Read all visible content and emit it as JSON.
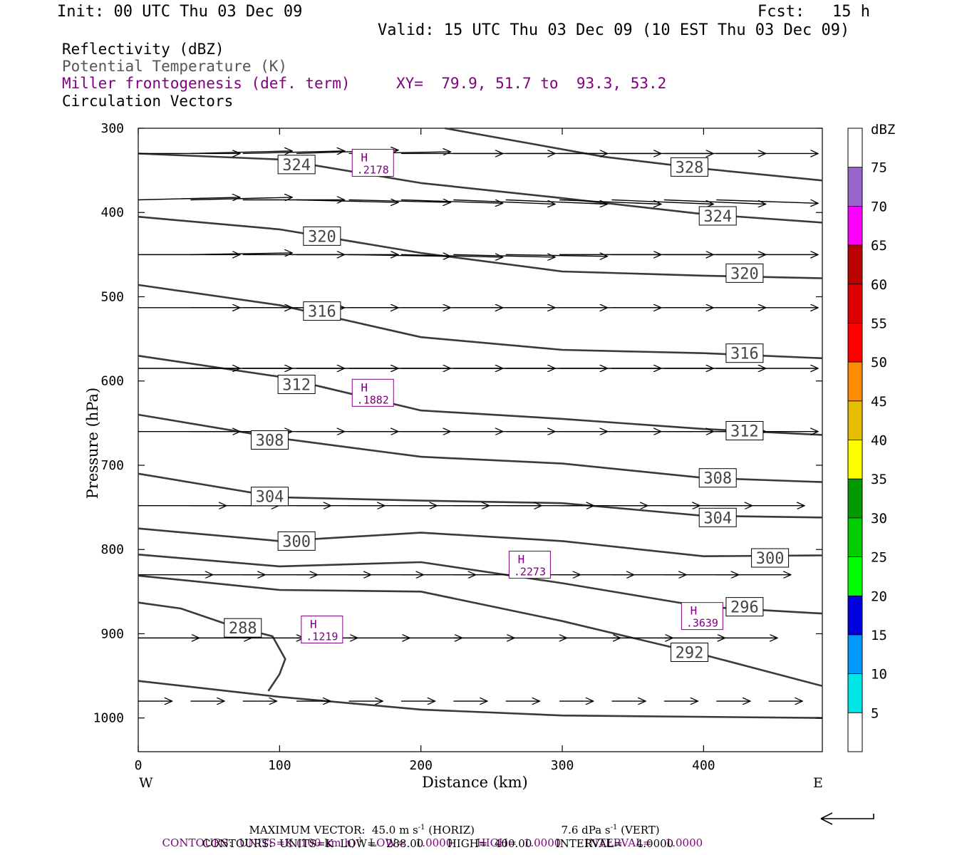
{
  "header": {
    "init": "Init: 00 UTC Thu 03 Dec 09",
    "fcst_label": "Fcst:",
    "fcst_value": "15 h",
    "valid": "Valid: 15 UTC Thu 03 Dec 09 (10 EST Thu 03 Dec 09)"
  },
  "fields": {
    "reflectivity": "Reflectivity (dBZ)",
    "theta": "Potential Temperature (K)",
    "frontogenesis": "Miller frontogenesis (def. term)",
    "xy": "XY=  79.9, 51.7 to  93.3, 53.2",
    "vectors": "Circulation Vectors"
  },
  "colors": {
    "theta_contour": "#3a3a3a",
    "frontogenesis": "#800080",
    "vectors": "#000000"
  },
  "chart_data": {
    "type": "line",
    "xlabel": "Distance (km)",
    "ylabel": "Pressure (hPa)",
    "xlim": [
      0,
      484
    ],
    "ylim": [
      1040,
      300
    ],
    "x_ticks": [
      "0",
      "100",
      "200",
      "300",
      "400"
    ],
    "y_ticks": [
      "300",
      "400",
      "500",
      "600",
      "700",
      "800",
      "900",
      "1000"
    ],
    "direction_left": "W",
    "direction_right": "E",
    "theta_contours": [
      {
        "label": "328",
        "label_at": [
          390,
          346
        ],
        "points": [
          [
            217,
            300
          ],
          [
            330,
            334
          ],
          [
            400,
            348
          ],
          [
            484,
            362
          ]
        ]
      },
      {
        "label": "324",
        "label_at": [
          112,
          343
        ],
        "points": [
          [
            0,
            330
          ],
          [
            100,
            337
          ],
          [
            200,
            365
          ],
          [
            300,
            383
          ],
          [
            400,
            402
          ],
          [
            484,
            412
          ]
        ]
      },
      {
        "label": "324",
        "label_at": [
          410,
          404
        ],
        "points": []
      },
      {
        "label": "320",
        "label_at": [
          130,
          428
        ],
        "points": [
          [
            0,
            405
          ],
          [
            100,
            420
          ],
          [
            200,
            448
          ],
          [
            300,
            470
          ],
          [
            400,
            475
          ],
          [
            484,
            478
          ]
        ]
      },
      {
        "label": "320",
        "label_at": [
          429,
          472
        ],
        "points": []
      },
      {
        "label": "316",
        "label_at": [
          130,
          517
        ],
        "points": [
          [
            0,
            486
          ],
          [
            100,
            510
          ],
          [
            200,
            548
          ],
          [
            300,
            563
          ],
          [
            400,
            567
          ],
          [
            484,
            573
          ]
        ]
      },
      {
        "label": "316",
        "label_at": [
          429,
          567
        ],
        "points": []
      },
      {
        "label": "312",
        "label_at": [
          112,
          604
        ],
        "points": [
          [
            0,
            570
          ],
          [
            100,
            595
          ],
          [
            200,
            635
          ],
          [
            300,
            645
          ],
          [
            400,
            657
          ],
          [
            484,
            664
          ]
        ]
      },
      {
        "label": "312",
        "label_at": [
          429,
          659
        ],
        "points": []
      },
      {
        "label": "308",
        "label_at": [
          93,
          670
        ],
        "points": [
          [
            0,
            640
          ],
          [
            100,
            668
          ],
          [
            200,
            690
          ],
          [
            300,
            698
          ],
          [
            400,
            715
          ],
          [
            484,
            720
          ]
        ]
      },
      {
        "label": "308",
        "label_at": [
          410,
          715
        ],
        "points": []
      },
      {
        "label": "304",
        "label_at": [
          93,
          737
        ],
        "points": [
          [
            0,
            710
          ],
          [
            100,
            738
          ],
          [
            200,
            742
          ],
          [
            300,
            745
          ],
          [
            400,
            760
          ],
          [
            484,
            762
          ]
        ]
      },
      {
        "label": "304",
        "label_at": [
          410,
          762
        ],
        "points": []
      },
      {
        "label": "300",
        "label_at": [
          112,
          790
        ],
        "points": [
          [
            0,
            775
          ],
          [
            100,
            790
          ],
          [
            200,
            780
          ],
          [
            300,
            790
          ],
          [
            400,
            808
          ],
          [
            484,
            807
          ]
        ]
      },
      {
        "label": "300",
        "label_at": [
          447,
          810
        ],
        "points": []
      },
      {
        "label": "296",
        "label_at": [
          429,
          868
        ],
        "points": [
          [
            0,
            806
          ],
          [
            100,
            820
          ],
          [
            200,
            815
          ],
          [
            300,
            840
          ],
          [
            400,
            868
          ],
          [
            484,
            876
          ]
        ]
      },
      {
        "label": "292",
        "label_at": [
          390,
          922
        ],
        "points": [
          [
            0,
            831
          ],
          [
            100,
            848
          ],
          [
            200,
            850
          ],
          [
            300,
            885
          ],
          [
            400,
            925
          ],
          [
            484,
            962
          ]
        ]
      },
      {
        "label": "288",
        "label_at": [
          74,
          893
        ],
        "points": [
          [
            0,
            863
          ],
          [
            30,
            870
          ],
          [
            65,
            890
          ],
          [
            95,
            903
          ],
          [
            104,
            930
          ],
          [
            100,
            948
          ],
          [
            92,
            968
          ]
        ]
      },
      {
        "label": "",
        "label_at": [
          0,
          0
        ],
        "points": [
          [
            0,
            956
          ],
          [
            100,
            975
          ],
          [
            200,
            990
          ],
          [
            300,
            997
          ],
          [
            484,
            1000
          ]
        ]
      }
    ],
    "frontogenesis_maxima": [
      {
        "label": "H",
        "value": ".2178",
        "x": 166,
        "p": 341
      },
      {
        "label": "H",
        "value": ".1882",
        "x": 166,
        "p": 614
      },
      {
        "label": "H",
        "value": ".2273",
        "x": 277,
        "p": 818
      },
      {
        "label": "H",
        "value": ".3639",
        "x": 399,
        "p": 879
      },
      {
        "label": "H",
        "value": ".1219",
        "x": 130,
        "p": 895
      }
    ],
    "circulation_vectors": [
      {
        "p": 330,
        "x_start": [
          0,
          37,
          74,
          112,
          149,
          186,
          223,
          260,
          298,
          335,
          372,
          409,
          446
        ],
        "dx": 30,
        "dp": [
          0,
          -3,
          -3,
          -4,
          -2,
          0,
          0,
          0,
          0,
          0,
          0,
          0,
          0
        ]
      },
      {
        "p": 385,
        "x_start": [
          0,
          37,
          74,
          112,
          149,
          186,
          223,
          260,
          298,
          335,
          372,
          409,
          446
        ],
        "dx": 30,
        "dp": [
          -3,
          -3,
          0,
          3,
          3,
          4,
          5,
          5,
          5,
          5,
          5,
          4,
          3
        ]
      },
      {
        "p": 450,
        "x_start": [
          0,
          37,
          74,
          112,
          149,
          186,
          223,
          260,
          298,
          335,
          372,
          409,
          446
        ],
        "dx": 30,
        "dp": [
          0,
          -2,
          0,
          0,
          2,
          3,
          3,
          2,
          0,
          0,
          0,
          0,
          0
        ]
      },
      {
        "p": 513,
        "x_start": [
          0,
          37,
          74,
          112,
          149,
          186,
          223,
          260,
          298,
          335,
          372,
          409,
          446
        ],
        "dx": 30,
        "dp": [
          0,
          0,
          0,
          0,
          0,
          0,
          0,
          0,
          0,
          0,
          0,
          0,
          0
        ]
      },
      {
        "p": 585,
        "x_start": [
          0,
          37,
          74,
          112,
          149,
          186,
          223,
          260,
          298,
          335,
          372,
          409,
          446
        ],
        "dx": 30,
        "dp": [
          0,
          0,
          0,
          0,
          0,
          0,
          0,
          0,
          0,
          0,
          0,
          0,
          0
        ]
      },
      {
        "p": 660,
        "x_start": [
          0,
          37,
          74,
          112,
          149,
          186,
          223,
          260,
          298,
          335,
          372,
          409,
          446
        ],
        "dx": 30,
        "dp": [
          0,
          0,
          0,
          0,
          0,
          0,
          0,
          0,
          0,
          0,
          0,
          0,
          0
        ]
      },
      {
        "p": 748,
        "x_start": [
          0,
          37,
          74,
          112,
          149,
          186,
          223,
          260,
          298,
          335,
          372,
          409,
          446
        ],
        "dx": 26,
        "dp": [
          0,
          0,
          0,
          0,
          0,
          0,
          0,
          0,
          0,
          0,
          0,
          0,
          0
        ]
      },
      {
        "p": 830,
        "x_start": [
          0,
          37,
          74,
          112,
          149,
          186,
          223,
          260,
          298,
          335,
          372,
          409,
          446
        ],
        "dx": 22,
        "dp": [
          0,
          0,
          0,
          0,
          0,
          0,
          0,
          0,
          0,
          0,
          0,
          0,
          0
        ]
      },
      {
        "p": 905,
        "x_start": [
          0,
          37,
          74,
          112,
          149,
          186,
          223,
          260,
          298,
          335,
          372,
          409,
          446
        ],
        "dx": 18,
        "dp": [
          0,
          0,
          0,
          0,
          0,
          0,
          0,
          0,
          0,
          0,
          0,
          0,
          0
        ]
      },
      {
        "p": 980,
        "x_start": [
          0,
          37,
          74,
          112,
          149,
          186,
          223,
          260,
          298,
          335,
          372,
          409,
          446
        ],
        "dx": 10,
        "dp": [
          0,
          0,
          0,
          0,
          0,
          0,
          0,
          0,
          0,
          0,
          0,
          0,
          0
        ]
      }
    ],
    "colorbar": {
      "label": "dBZ",
      "levels": [
        "5",
        "10",
        "15",
        "20",
        "25",
        "30",
        "35",
        "40",
        "45",
        "50",
        "55",
        "60",
        "65",
        "70",
        "75"
      ],
      "colors": [
        "#ffffff",
        "#00e5e5",
        "#0099ff",
        "#0000dd",
        "#00ff00",
        "#00cc00",
        "#009900",
        "#ffff00",
        "#e5bf00",
        "#ff8c00",
        "#ff0000",
        "#dd0000",
        "#bb0000",
        "#ff00ff",
        "#9966cc",
        "#ffffff"
      ]
    }
  },
  "footer": {
    "max_vector": "MAXIMUM VECTOR:  45.0 m s",
    "max_vector_horiz": " (HORIZ)",
    "vert_value": "7.6 dPa s",
    "vert_label": " (VERT)",
    "contours_fg_1": "CONTOURS:  UNITS=K (100 km h)",
    "contours_fg_2": "  LOW=   1.0000       HIGH=  1.0000       INTERVAL=    1.0000",
    "contours_theta": "CONTOURS:  UNITS=K  LOW=   288.00       HIGH=  400.00       INTERVAL=    4.0000"
  }
}
